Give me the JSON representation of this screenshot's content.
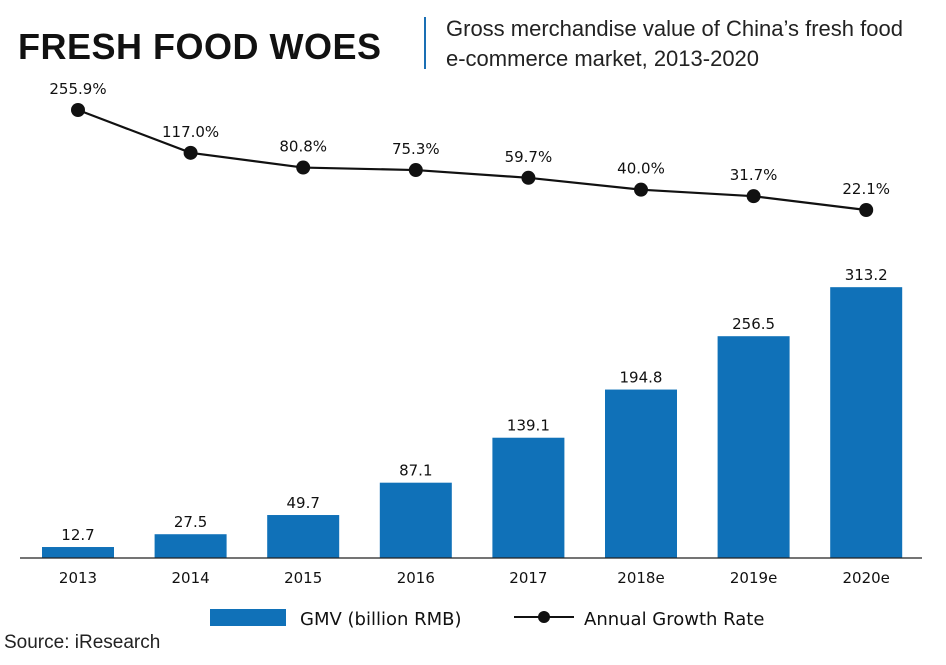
{
  "header": {
    "title": "FRESH FOOD WOES",
    "subtitle": "Gross merchandise value of China’s fresh food e-commerce market, 2013-2020"
  },
  "source": "Source: iResearch",
  "colors": {
    "bar": "#1071b8",
    "line": "#111111",
    "accent": "#1a6fb4"
  },
  "chart_data": {
    "type": "bar",
    "categories": [
      "2013",
      "2014",
      "2015",
      "2016",
      "2017",
      "2018e",
      "2019e",
      "2020e"
    ],
    "series": [
      {
        "name": "GMV (billion RMB)",
        "type": "bar",
        "values": [
          12.7,
          27.5,
          49.7,
          87.1,
          139.1,
          194.8,
          256.5,
          313.2
        ],
        "labels": [
          "12.7",
          "27.5",
          "49.7",
          "87.1",
          "139.1",
          "194.8",
          "256.5",
          "313.2"
        ]
      },
      {
        "name": "Annual Growth Rate",
        "type": "line",
        "values": [
          255.9,
          117.0,
          80.8,
          75.3,
          59.7,
          40.0,
          31.7,
          22.1
        ],
        "labels": [
          "255.9%",
          "117.0%",
          "80.8%",
          "75.3%",
          "59.7%",
          "40.0%",
          "31.7%",
          "22.1%"
        ]
      }
    ],
    "legend_position": "bottom",
    "grid": false
  }
}
